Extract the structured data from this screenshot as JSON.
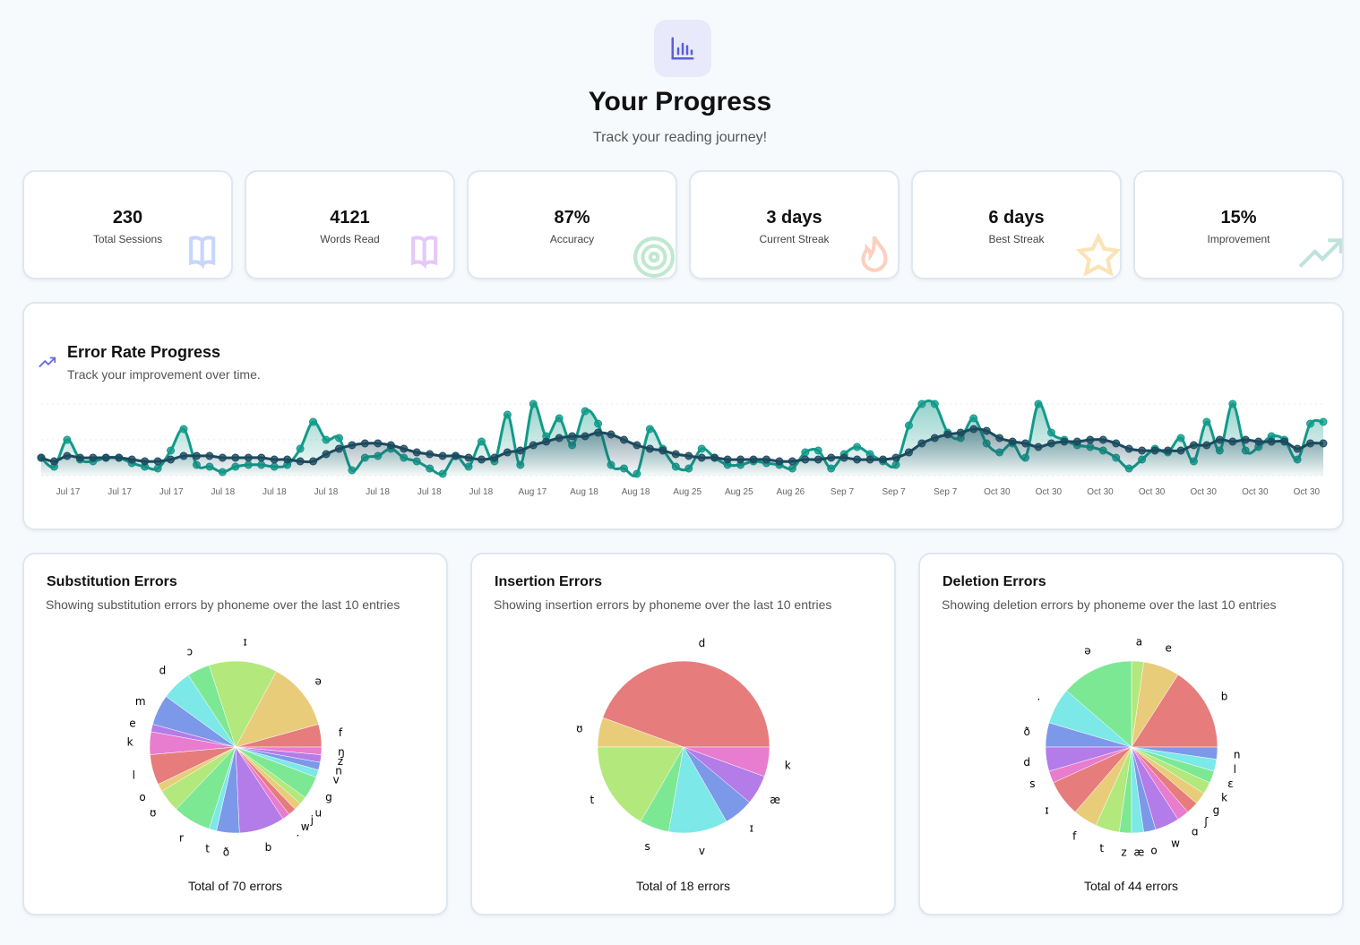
{
  "header": {
    "title": "Your Progress",
    "subtitle": "Track your reading journey!",
    "icon": "bar-chart-icon"
  },
  "stats": [
    {
      "value": "230",
      "label": "Total Sessions",
      "icon": "book-icon",
      "color": "#c7d6fb"
    },
    {
      "value": "4121",
      "label": "Words Read",
      "icon": "book-open-icon",
      "color": "#e6c9f7"
    },
    {
      "value": "87%",
      "label": "Accuracy",
      "icon": "target-icon",
      "color": "#bfe8d0"
    },
    {
      "value": "3 days",
      "label": "Current Streak",
      "icon": "flame-icon",
      "color": "#fbd0c0"
    },
    {
      "value": "6 days",
      "label": "Best Streak",
      "icon": "star-icon",
      "color": "#fbe3b5"
    },
    {
      "value": "15%",
      "label": "Improvement",
      "icon": "trending-up-icon",
      "color": "#bfe3dc"
    }
  ],
  "error_chart": {
    "title": "Error Rate Progress",
    "subtitle": "Track your improvement over time."
  },
  "chart_data": [
    {
      "type": "line",
      "title": "Error Rate Progress",
      "grid": true,
      "x_tick_labels": [
        "Jul 17",
        "Jul 17",
        "Jul 17",
        "Jul 18",
        "Jul 18",
        "Jul 18",
        "Jul 18",
        "Jul 18",
        "Jul 18",
        "Aug 17",
        "Aug 18",
        "Aug 18",
        "Aug 25",
        "Aug 25",
        "Aug 26",
        "Sep 7",
        "Sep 7",
        "Sep 7",
        "Oct 30",
        "Oct 30",
        "Oct 30",
        "Oct 30",
        "Oct 30",
        "Oct 30",
        "Oct 30"
      ],
      "ylim": [
        0,
        40
      ],
      "series": [
        {
          "color": "#129a8a",
          "values": [
            10,
            5,
            20,
            9,
            8,
            10,
            10,
            7,
            5,
            4,
            14,
            26,
            6,
            5,
            2,
            5,
            6,
            6,
            5,
            6,
            15,
            30,
            20,
            21,
            3,
            10,
            11,
            15,
            10,
            8,
            4,
            1,
            11,
            5,
            19,
            8,
            34,
            6,
            40,
            22,
            32,
            17,
            36,
            29,
            6,
            4,
            1,
            26,
            15,
            5,
            4,
            15,
            10,
            6,
            6,
            8,
            7,
            6,
            4,
            13,
            14,
            4,
            12,
            16,
            12,
            8,
            6,
            28,
            40,
            40,
            24,
            21,
            32,
            18,
            13,
            18,
            10,
            40,
            24,
            20,
            17,
            16,
            14,
            10,
            4,
            9,
            15,
            13,
            21,
            8,
            30,
            14,
            40,
            14,
            16,
            22,
            20,
            9,
            29,
            30
          ]
        },
        {
          "color": "#1c4a5e",
          "values": [
            10,
            8,
            11,
            10,
            10,
            10,
            10,
            9,
            8,
            8,
            9,
            11,
            11,
            11,
            10,
            10,
            10,
            10,
            9,
            9,
            8,
            8,
            12,
            15,
            17,
            18,
            18,
            17,
            15,
            13,
            12,
            11,
            11,
            10,
            9,
            10,
            13,
            14,
            17,
            19,
            21,
            22,
            22,
            24,
            23,
            20,
            17,
            15,
            14,
            12,
            11,
            10,
            10,
            9,
            9,
            9,
            9,
            8,
            8,
            9,
            9,
            10,
            10,
            9,
            9,
            9,
            10,
            13,
            18,
            21,
            23,
            24,
            26,
            25,
            21,
            19,
            18,
            16,
            18,
            19,
            19,
            20,
            20,
            18,
            15,
            14,
            14,
            14,
            14,
            17,
            17,
            20,
            19,
            20,
            19,
            19,
            19,
            15,
            18,
            18
          ]
        }
      ]
    },
    {
      "type": "pie",
      "title": "Substitution Errors",
      "subtitle": "Showing substitution errors by phoneme over the last 10 entries",
      "total_label": "Total of 70 errors",
      "labels": [
        "f",
        "ə",
        "ɪ",
        "ɔ",
        "d",
        "m",
        "e",
        "k",
        "l",
        "o",
        "ʊ",
        "r",
        "t",
        "ð",
        "b",
        ".",
        "w",
        "j",
        "u",
        "g",
        "v",
        "n",
        "z",
        "ŋ"
      ],
      "values": [
        3,
        9,
        9,
        3,
        4,
        4,
        1,
        3,
        4,
        1,
        3,
        5,
        1,
        3,
        6,
        1,
        1,
        1,
        1,
        3,
        1,
        1,
        1,
        1
      ]
    },
    {
      "type": "pie",
      "title": "Insertion Errors",
      "subtitle": "Showing insertion errors by phoneme over the last 10 entries",
      "total_label": "Total of 18 errors",
      "labels": [
        "d",
        "ʊ",
        "t",
        "s",
        "v",
        "ɪ",
        "æ",
        "k"
      ],
      "values": [
        8,
        1,
        3,
        1,
        2,
        1,
        1,
        1
      ]
    },
    {
      "type": "pie",
      "title": "Deletion Errors",
      "subtitle": "Showing deletion errors by phoneme over the last 10 entries",
      "total_label": "Total of 44 errors",
      "labels": [
        "b",
        "e",
        "a",
        "ə",
        ".",
        "ð",
        "d",
        "s",
        "ɪ",
        "f",
        "t",
        "z",
        "æ",
        "o",
        "w",
        "ɑ",
        "ʃ",
        "g",
        "k",
        "ɛ",
        "l",
        "n"
      ],
      "values": [
        7,
        3,
        1,
        6,
        3,
        2,
        2,
        1,
        3,
        2,
        2,
        1,
        1,
        1,
        2,
        1,
        1,
        1,
        1,
        1,
        1,
        1
      ]
    }
  ],
  "pie_colors": [
    "#e67c7c",
    "#e8cc7a",
    "#b3e87c",
    "#7ce894",
    "#7ce8e8",
    "#7c98e8",
    "#b37ce8",
    "#e87cce"
  ]
}
